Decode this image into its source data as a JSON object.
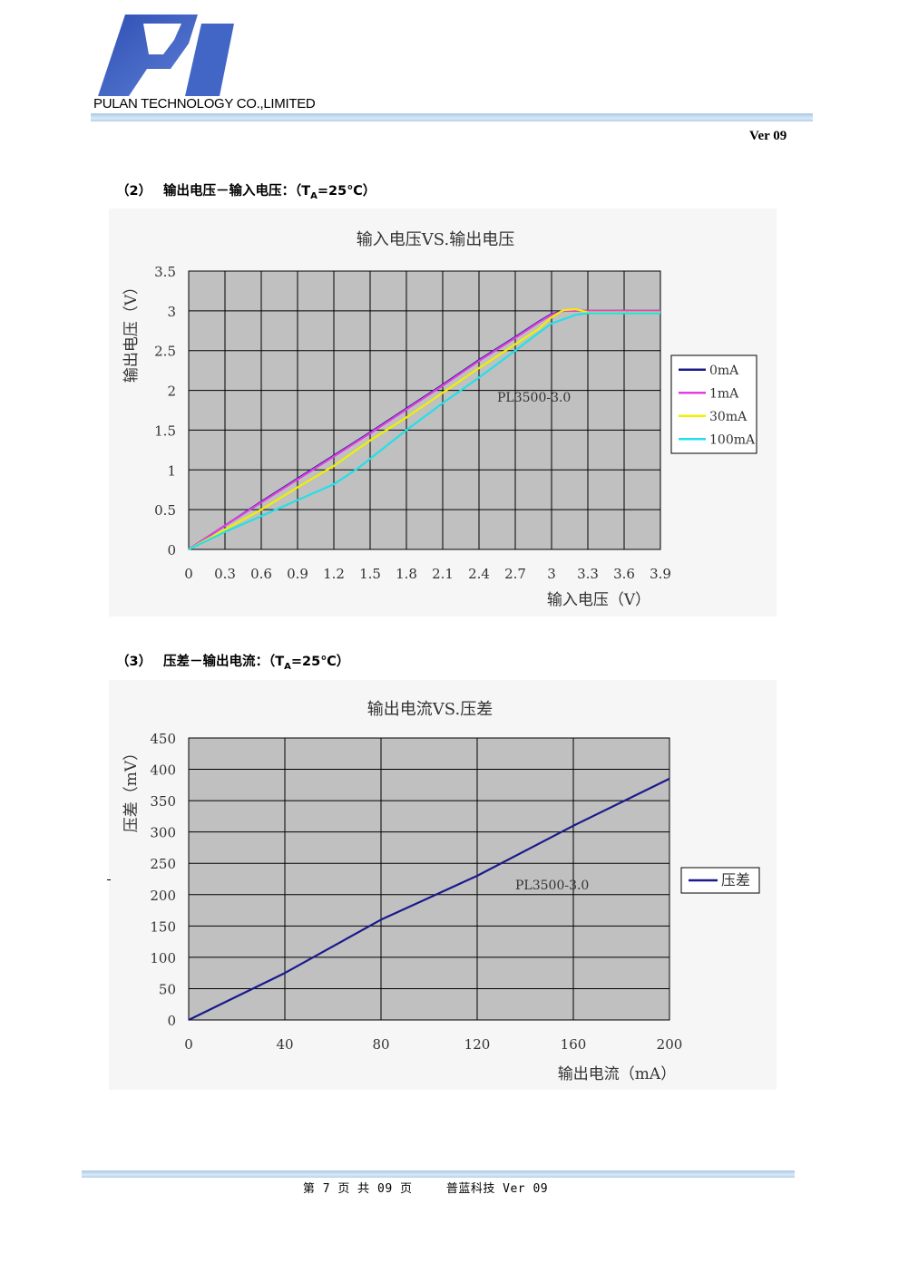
{
  "header": {
    "company": "PULAN TECHNOLOGY CO.,LIMITED",
    "version": "Ver 09"
  },
  "section2": {
    "num": "（2）",
    "title_pre": "输出电压－输入电压：（T",
    "title_sub": "A",
    "title_post": "=25℃）"
  },
  "section3": {
    "num": "（3）",
    "title_pre": "压差－输出电流：（T",
    "title_sub": "A",
    "title_post": "=25℃）"
  },
  "chart_data": [
    {
      "type": "line",
      "title": "输入电压VS.输出电压",
      "xlabel": "输入电压（V）",
      "ylabel": "输出电压（V）",
      "annotation": "PL3500-3.0",
      "xlim": [
        0,
        3.9
      ],
      "ylim": [
        0,
        3.5
      ],
      "xticks": [
        "0",
        "0.3",
        "0.6",
        "0.9",
        "1.2",
        "1.5",
        "1.8",
        "2.1",
        "2.4",
        "2.7",
        "3",
        "3.3",
        "3.6",
        "3.9"
      ],
      "yticks": [
        "0",
        "0.5",
        "1",
        "1.5",
        "2",
        "2.5",
        "3",
        "3.5"
      ],
      "grid": true,
      "legend_position": "right",
      "series": [
        {
          "name": "0mA",
          "color": "#1a1a8c",
          "x": [
            0,
            0.3,
            0.6,
            0.9,
            1.2,
            1.5,
            1.8,
            2.1,
            2.4,
            2.7,
            2.9,
            3.0,
            3.1,
            3.3,
            3.6,
            3.9
          ],
          "y": [
            0,
            0.3,
            0.6,
            0.89,
            1.18,
            1.47,
            1.77,
            2.07,
            2.38,
            2.67,
            2.87,
            2.96,
            3.0,
            3.0,
            3.0,
            3.0
          ]
        },
        {
          "name": "1mA",
          "color": "#e040e0",
          "x": [
            0,
            0.3,
            0.6,
            0.9,
            1.2,
            1.5,
            1.8,
            2.1,
            2.4,
            2.7,
            2.9,
            3.0,
            3.1,
            3.3,
            3.6,
            3.9
          ],
          "y": [
            0,
            0.3,
            0.59,
            0.88,
            1.17,
            1.46,
            1.76,
            2.06,
            2.37,
            2.66,
            2.86,
            2.95,
            3.0,
            3.0,
            3.0,
            3.0
          ]
        },
        {
          "name": "30mA",
          "color": "#f0f000",
          "x": [
            0,
            0.3,
            0.6,
            0.9,
            1.2,
            1.5,
            1.8,
            2.1,
            2.4,
            2.7,
            2.9,
            3.0,
            3.1,
            3.2,
            3.3,
            3.6,
            3.9
          ],
          "y": [
            0,
            0.25,
            0.5,
            0.78,
            1.05,
            1.37,
            1.66,
            1.97,
            2.28,
            2.58,
            2.78,
            2.92,
            3.01,
            3.02,
            2.98,
            2.98,
            2.98
          ]
        },
        {
          "name": "100mA",
          "color": "#22e0e8",
          "x": [
            0,
            0.3,
            0.6,
            0.9,
            1.2,
            1.4,
            1.5,
            1.8,
            2.1,
            2.4,
            2.7,
            2.9,
            3.0,
            3.2,
            3.3,
            3.6,
            3.9
          ],
          "y": [
            0,
            0.22,
            0.42,
            0.62,
            0.82,
            1.02,
            1.14,
            1.5,
            1.84,
            2.16,
            2.5,
            2.73,
            2.84,
            2.95,
            2.97,
            2.97,
            2.97
          ]
        }
      ]
    },
    {
      "type": "line",
      "title": "输出电流VS.压差",
      "xlabel": "输出电流（mA）",
      "ylabel": "压差（mV）",
      "annotation": "PL3500-3.0",
      "xlim": [
        0,
        200
      ],
      "ylim": [
        0,
        450
      ],
      "xticks": [
        "0",
        "40",
        "80",
        "120",
        "160",
        "200"
      ],
      "yticks": [
        "0",
        "50",
        "100",
        "150",
        "200",
        "250",
        "300",
        "350",
        "400",
        "450"
      ],
      "grid": true,
      "legend_position": "right",
      "series": [
        {
          "name": "压差",
          "color": "#1a1a8c",
          "x": [
            0,
            40,
            80,
            100,
            120,
            160,
            200
          ],
          "y": [
            0,
            75,
            160,
            195,
            230,
            310,
            385
          ]
        }
      ]
    }
  ],
  "footer": {
    "page": "第 7 页 共 09 页",
    "company": "普蓝科技 Ver 09"
  }
}
